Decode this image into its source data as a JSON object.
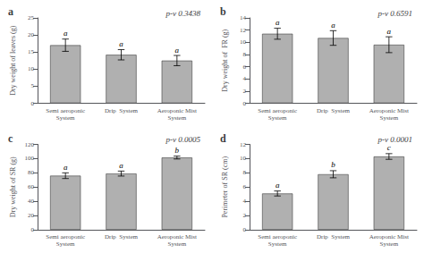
{
  "chart_data": [
    {
      "type": "bar",
      "title": "a",
      "ylabel": "Dry weight of leaves (g)",
      "categories": [
        "Semi aeroponic\nSystem",
        "Drip  System",
        "Aeroponic Mist\nSystem"
      ],
      "values": [
        17.0,
        14.2,
        12.5
      ],
      "errors": [
        1.8,
        1.5,
        1.5
      ],
      "letters": [
        "a",
        "a",
        "a"
      ],
      "annotation": "p-v 0.3438",
      "color": "#b0b0b0",
      "ylim": [
        0,
        25
      ],
      "yticks": [
        0,
        5,
        10,
        15,
        20,
        25
      ],
      "grid": false
    },
    {
      "type": "bar",
      "title": "b",
      "ylabel": "Dry weight of  FR (g)",
      "categories": [
        "Semi aeroponic\nSystem",
        "Drip  System",
        "Aeroponic Mist\nSystem"
      ],
      "values": [
        11.4,
        10.7,
        9.6
      ],
      "errors": [
        0.9,
        1.2,
        1.3
      ],
      "letters": [
        "a",
        "a",
        "a"
      ],
      "annotation": "p-v 0.6591",
      "color": "#b0b0b0",
      "ylim": [
        0,
        14
      ],
      "yticks": [
        0,
        2,
        4,
        6,
        8,
        10,
        12,
        14
      ],
      "grid": false
    },
    {
      "type": "bar",
      "title": "c",
      "ylabel": "Dry weight of SR (g)",
      "categories": [
        "Semi aeroponic\nSystem",
        "Drip  System",
        "Aeroponic Mist\nSystem"
      ],
      "values": [
        76.0,
        79.0,
        101.5
      ],
      "errors": [
        4.0,
        3.5,
        2.0
      ],
      "letters": [
        "a",
        "a",
        "b"
      ],
      "annotation": "p-v 0.0005",
      "color": "#b0b0b0",
      "ylim": [
        0,
        120
      ],
      "yticks": [
        0,
        20,
        40,
        60,
        80,
        100,
        120
      ],
      "grid": false
    },
    {
      "type": "bar",
      "title": "d",
      "ylabel": "Perimeter of SR (cm)",
      "categories": [
        "Semi aeroponic\nSystem",
        "Drip  System",
        "Aeroponic Mist\nSystem"
      ],
      "values": [
        5.1,
        7.8,
        10.3
      ],
      "errors": [
        0.35,
        0.5,
        0.4
      ],
      "letters": [
        "a",
        "b",
        "c"
      ],
      "annotation": "p-v 0.0001",
      "color": "#b0b0b0",
      "ylim": [
        0,
        12
      ],
      "yticks": [
        0,
        2,
        4,
        6,
        8,
        10,
        12
      ],
      "grid": false
    }
  ]
}
